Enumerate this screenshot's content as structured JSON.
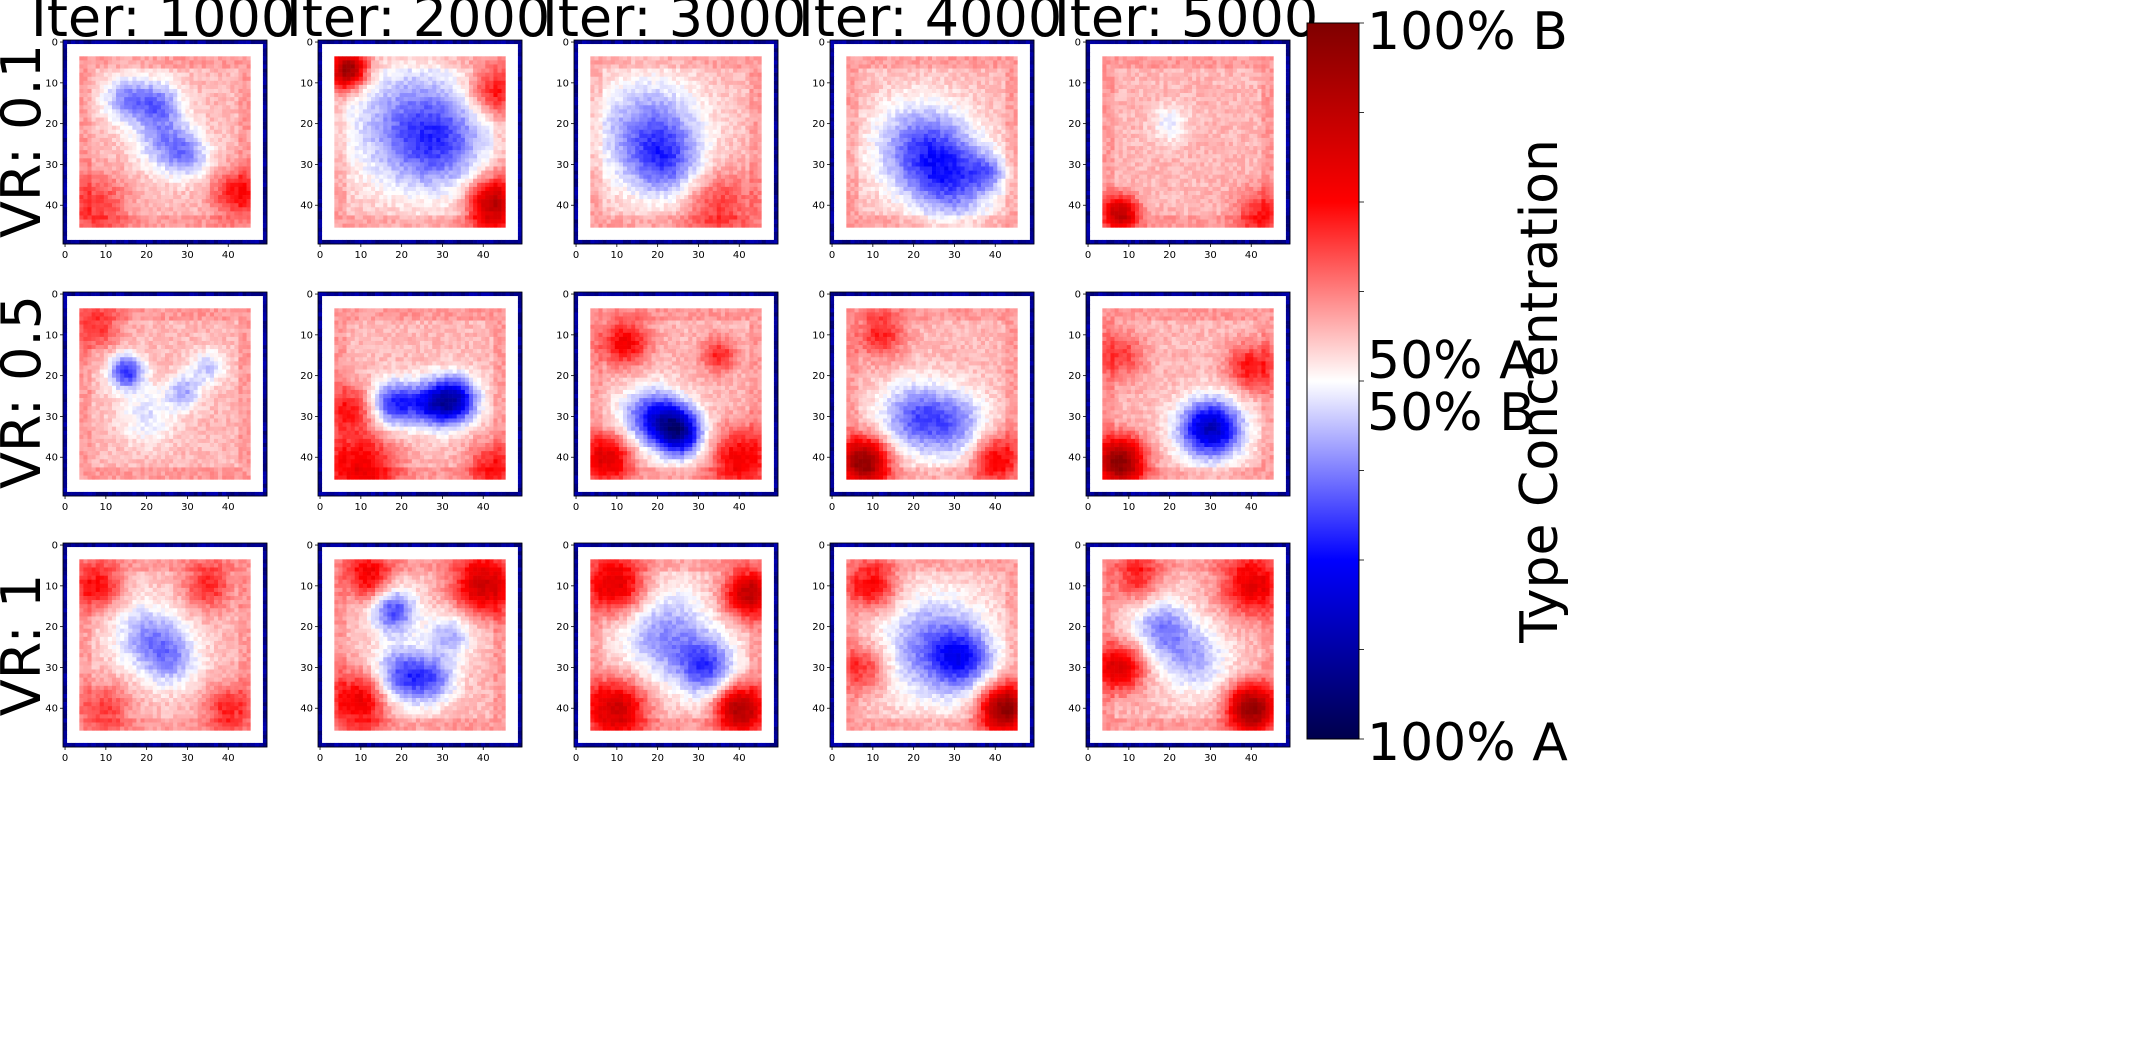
{
  "chart_data": {
    "type": "heatmap",
    "layout": "grid 3 rows x 5 columns",
    "column_titles": [
      "Iter: 1000",
      "Iter: 2000",
      "Iter: 3000",
      "Iter: 4000",
      "Iter: 5000"
    ],
    "row_labels": [
      "VR: 0.1",
      "VR: 0.5",
      "VR: 1"
    ],
    "grid_size": 50,
    "axis_ticks": [
      "0",
      "10",
      "20",
      "30",
      "40"
    ],
    "colormap": "seismic",
    "colorbar": {
      "label": "Type Concentration",
      "tick_labels": {
        "top": "100% B",
        "mid_upper": "50% A",
        "mid_lower": "50% B",
        "bottom": "100% A"
      },
      "colors": [
        "#00004c",
        "#0000ff",
        "#ffffff",
        "#ff0000",
        "#7f0000"
      ]
    },
    "panels": [
      {
        "row": 0,
        "col": 0,
        "blobs": [
          [
            15,
            14,
            4,
            -0.35
          ],
          [
            23,
            15,
            4,
            -0.35
          ],
          [
            24,
            24,
            5,
            -0.3
          ],
          [
            30,
            28,
            4,
            -0.3
          ],
          [
            42,
            37,
            4,
            0.35
          ],
          [
            8,
            40,
            5,
            0.25
          ]
        ]
      },
      {
        "row": 0,
        "col": 1,
        "blobs": [
          [
            7,
            7,
            3,
            0.8
          ],
          [
            22,
            20,
            11,
            -0.35
          ],
          [
            30,
            25,
            8,
            -0.3
          ],
          [
            42,
            12,
            4,
            0.35
          ],
          [
            42,
            38,
            4,
            0.4
          ],
          [
            42,
            42,
            4,
            0.3
          ]
        ]
      },
      {
        "row": 0,
        "col": 2,
        "blobs": [
          [
            18,
            22,
            9,
            -0.4
          ],
          [
            22,
            30,
            6,
            -0.3
          ],
          [
            35,
            40,
            6,
            0.25
          ]
        ]
      },
      {
        "row": 0,
        "col": 3,
        "blobs": [
          [
            22,
            26,
            8,
            -0.45
          ],
          [
            30,
            34,
            7,
            -0.4
          ],
          [
            38,
            32,
            3,
            -0.25
          ]
        ]
      },
      {
        "row": 0,
        "col": 4,
        "blobs": [
          [
            8,
            42,
            3,
            0.6
          ],
          [
            20,
            20,
            3,
            -0.2
          ],
          [
            42,
            42,
            4,
            0.3
          ]
        ]
      },
      {
        "row": 1,
        "col": 0,
        "blobs": [
          [
            15,
            19,
            3,
            -0.55
          ],
          [
            29,
            24,
            3,
            -0.3
          ],
          [
            35,
            18,
            3,
            -0.25
          ],
          [
            20,
            30,
            5,
            -0.2
          ],
          [
            8,
            8,
            4,
            0.25
          ]
        ]
      },
      {
        "row": 1,
        "col": 1,
        "blobs": [
          [
            18,
            27,
            4,
            -0.55
          ],
          [
            27,
            27,
            4,
            -0.5
          ],
          [
            33,
            26,
            4,
            -0.75
          ],
          [
            8,
            28,
            4,
            0.3
          ],
          [
            10,
            42,
            6,
            0.4
          ],
          [
            42,
            42,
            4,
            0.3
          ]
        ]
      },
      {
        "row": 1,
        "col": 2,
        "blobs": [
          [
            18,
            30,
            5,
            -0.5
          ],
          [
            24,
            32,
            4,
            -0.5
          ],
          [
            26,
            35,
            4,
            -0.5
          ],
          [
            12,
            12,
            4,
            0.4
          ],
          [
            8,
            40,
            4,
            0.5
          ],
          [
            40,
            40,
            5,
            0.4
          ],
          [
            35,
            15,
            3,
            0.3
          ]
        ]
      },
      {
        "row": 1,
        "col": 3,
        "blobs": [
          [
            20,
            30,
            6,
            -0.4
          ],
          [
            30,
            32,
            6,
            -0.35
          ],
          [
            8,
            41,
            4,
            0.8
          ],
          [
            40,
            40,
            4,
            0.4
          ],
          [
            12,
            10,
            4,
            0.3
          ]
        ]
      },
      {
        "row": 1,
        "col": 4,
        "blobs": [
          [
            28,
            33,
            5,
            -0.45
          ],
          [
            32,
            33,
            5,
            -0.45
          ],
          [
            8,
            41,
            4,
            0.8
          ],
          [
            40,
            18,
            4,
            0.35
          ],
          [
            8,
            15,
            4,
            0.25
          ]
        ]
      },
      {
        "row": 2,
        "col": 0,
        "blobs": [
          [
            20,
            22,
            6,
            -0.3
          ],
          [
            26,
            28,
            5,
            -0.3
          ],
          [
            8,
            10,
            4,
            0.35
          ],
          [
            35,
            10,
            4,
            0.3
          ],
          [
            10,
            40,
            4,
            0.25
          ],
          [
            40,
            40,
            4,
            0.3
          ]
        ]
      },
      {
        "row": 2,
        "col": 1,
        "blobs": [
          [
            18,
            16,
            4,
            -0.5
          ],
          [
            20,
            32,
            5,
            -0.5
          ],
          [
            28,
            33,
            4,
            -0.35
          ],
          [
            32,
            22,
            4,
            -0.3
          ],
          [
            10,
            38,
            5,
            0.45
          ],
          [
            40,
            10,
            5,
            0.55
          ],
          [
            12,
            8,
            4,
            0.4
          ]
        ]
      },
      {
        "row": 2,
        "col": 2,
        "blobs": [
          [
            22,
            22,
            8,
            -0.35
          ],
          [
            32,
            30,
            5,
            -0.45
          ],
          [
            10,
            10,
            5,
            0.5
          ],
          [
            10,
            40,
            5,
            0.55
          ],
          [
            40,
            40,
            4,
            0.7
          ],
          [
            42,
            12,
            4,
            0.6
          ]
        ]
      },
      {
        "row": 2,
        "col": 3,
        "blobs": [
          [
            25,
            25,
            9,
            -0.4
          ],
          [
            32,
            28,
            5,
            -0.4
          ],
          [
            10,
            10,
            4,
            0.4
          ],
          [
            42,
            40,
            4,
            0.8
          ],
          [
            8,
            30,
            4,
            0.3
          ]
        ]
      },
      {
        "row": 2,
        "col": 4,
        "blobs": [
          [
            18,
            20,
            5,
            -0.35
          ],
          [
            26,
            28,
            6,
            -0.3
          ],
          [
            8,
            30,
            4,
            0.5
          ],
          [
            40,
            40,
            4,
            0.8
          ],
          [
            40,
            10,
            5,
            0.45
          ],
          [
            12,
            8,
            4,
            0.3
          ]
        ]
      }
    ]
  }
}
